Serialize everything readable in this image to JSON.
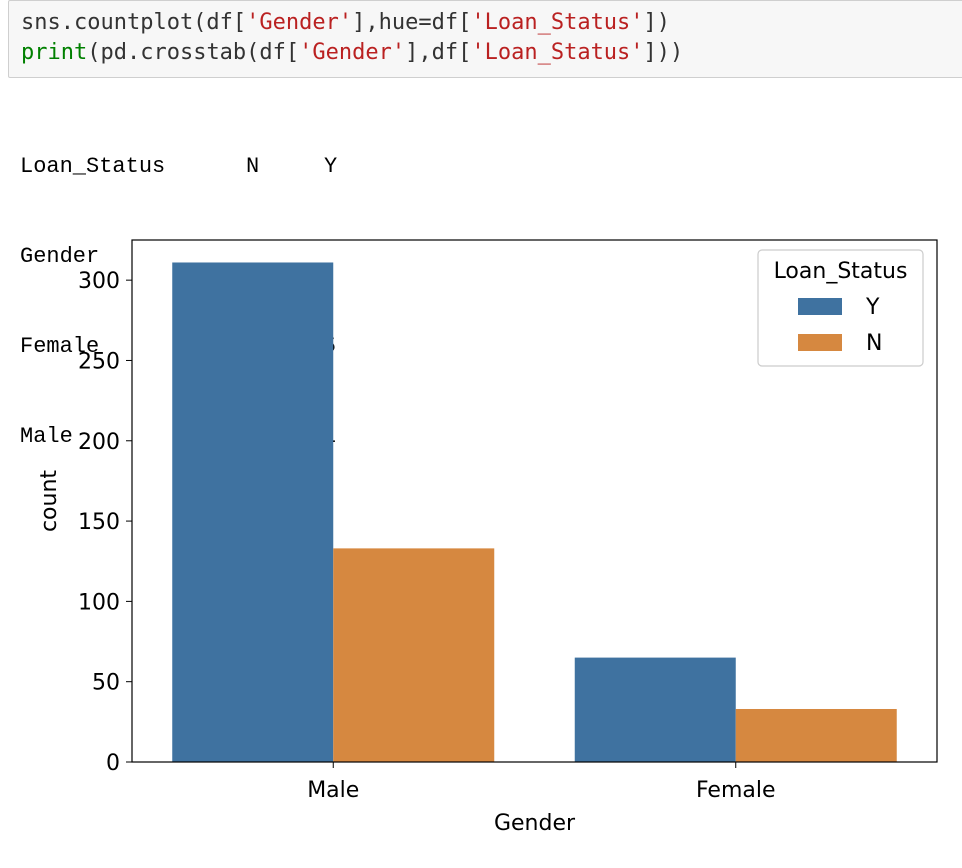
{
  "code_cell": {
    "lines": [
      [
        {
          "t": "sns.countplot(df[",
          "c": "plain"
        },
        {
          "t": "'Gender'",
          "c": "str"
        },
        {
          "t": "],hue=df[",
          "c": "plain"
        },
        {
          "t": "'Loan_Status'",
          "c": "str"
        },
        {
          "t": "])",
          "c": "plain"
        }
      ],
      [
        {
          "t": "print",
          "c": "kw"
        },
        {
          "t": "(pd.crosstab(df[",
          "c": "plain"
        },
        {
          "t": "'Gender'",
          "c": "str"
        },
        {
          "t": "],df[",
          "c": "plain"
        },
        {
          "t": "'Loan_Status'",
          "c": "str"
        },
        {
          "t": "]))",
          "c": "plain"
        }
      ]
    ]
  },
  "crosstab": {
    "columns_label": "Loan_Status",
    "col_N": "N",
    "col_Y": "Y",
    "index_label": "Gender",
    "rows": [
      {
        "label": "Female",
        "N": "33",
        "Y": "65"
      },
      {
        "label": "Male",
        "N": "133",
        "Y": "311"
      }
    ]
  },
  "chart_data": {
    "type": "bar",
    "categories": [
      "Male",
      "Female"
    ],
    "series": [
      {
        "name": "Y",
        "values": [
          311,
          65
        ],
        "color": "#3f72a0"
      },
      {
        "name": "N",
        "values": [
          133,
          33
        ],
        "color": "#d68840"
      }
    ],
    "xlabel": "Gender",
    "ylabel": "count",
    "ylim": [
      0,
      325
    ],
    "yticks": [
      0,
      50,
      100,
      150,
      200,
      250,
      300
    ],
    "legend_title": "Loan_Status",
    "legend_position": "top-right",
    "grid": false
  }
}
